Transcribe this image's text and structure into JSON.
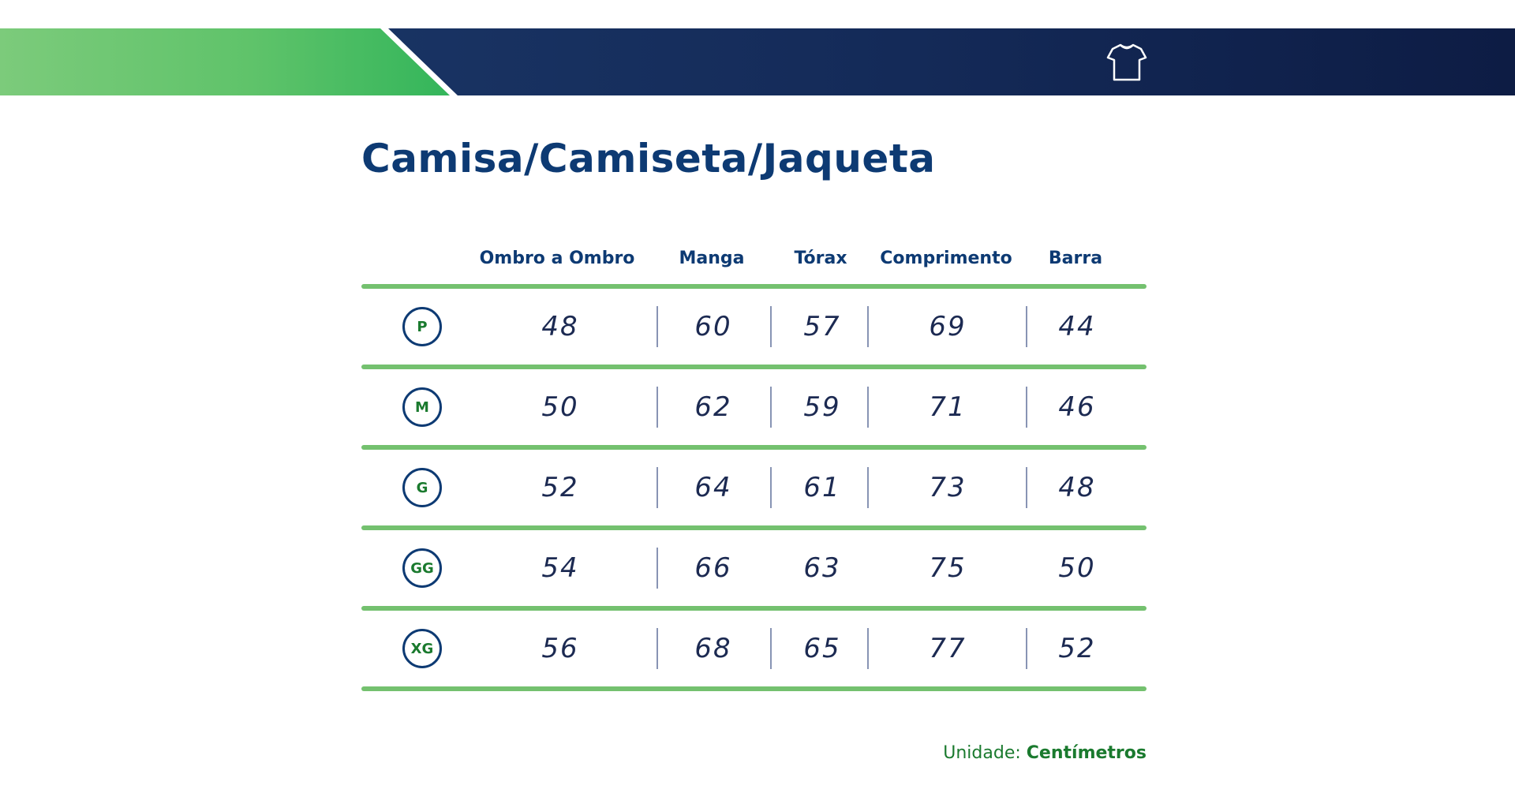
{
  "title": "Camisa/Camiseta/Jaqueta",
  "columns": [
    "Ombro a Ombro",
    "Manga",
    "Tórax",
    "Comprimento",
    "Barra"
  ],
  "rows": [
    {
      "size": "P",
      "values": [
        "48",
        "60",
        "57",
        "69",
        "44"
      ]
    },
    {
      "size": "M",
      "values": [
        "50",
        "62",
        "59",
        "71",
        "46"
      ]
    },
    {
      "size": "G",
      "values": [
        "52",
        "64",
        "61",
        "73",
        "48"
      ]
    },
    {
      "size": "GG",
      "values": [
        "54",
        "66",
        "63",
        "75",
        "50"
      ]
    },
    {
      "size": "XG",
      "values": [
        "56",
        "68",
        "65",
        "77",
        "52"
      ]
    }
  ],
  "unit": {
    "label": "Unidade:",
    "value": "Centímetros"
  },
  "icons": {
    "header": "tshirt-icon"
  },
  "colors": {
    "navy": "#0d3a73",
    "green": "#74c16f",
    "dark_green": "#1a7a2e"
  }
}
